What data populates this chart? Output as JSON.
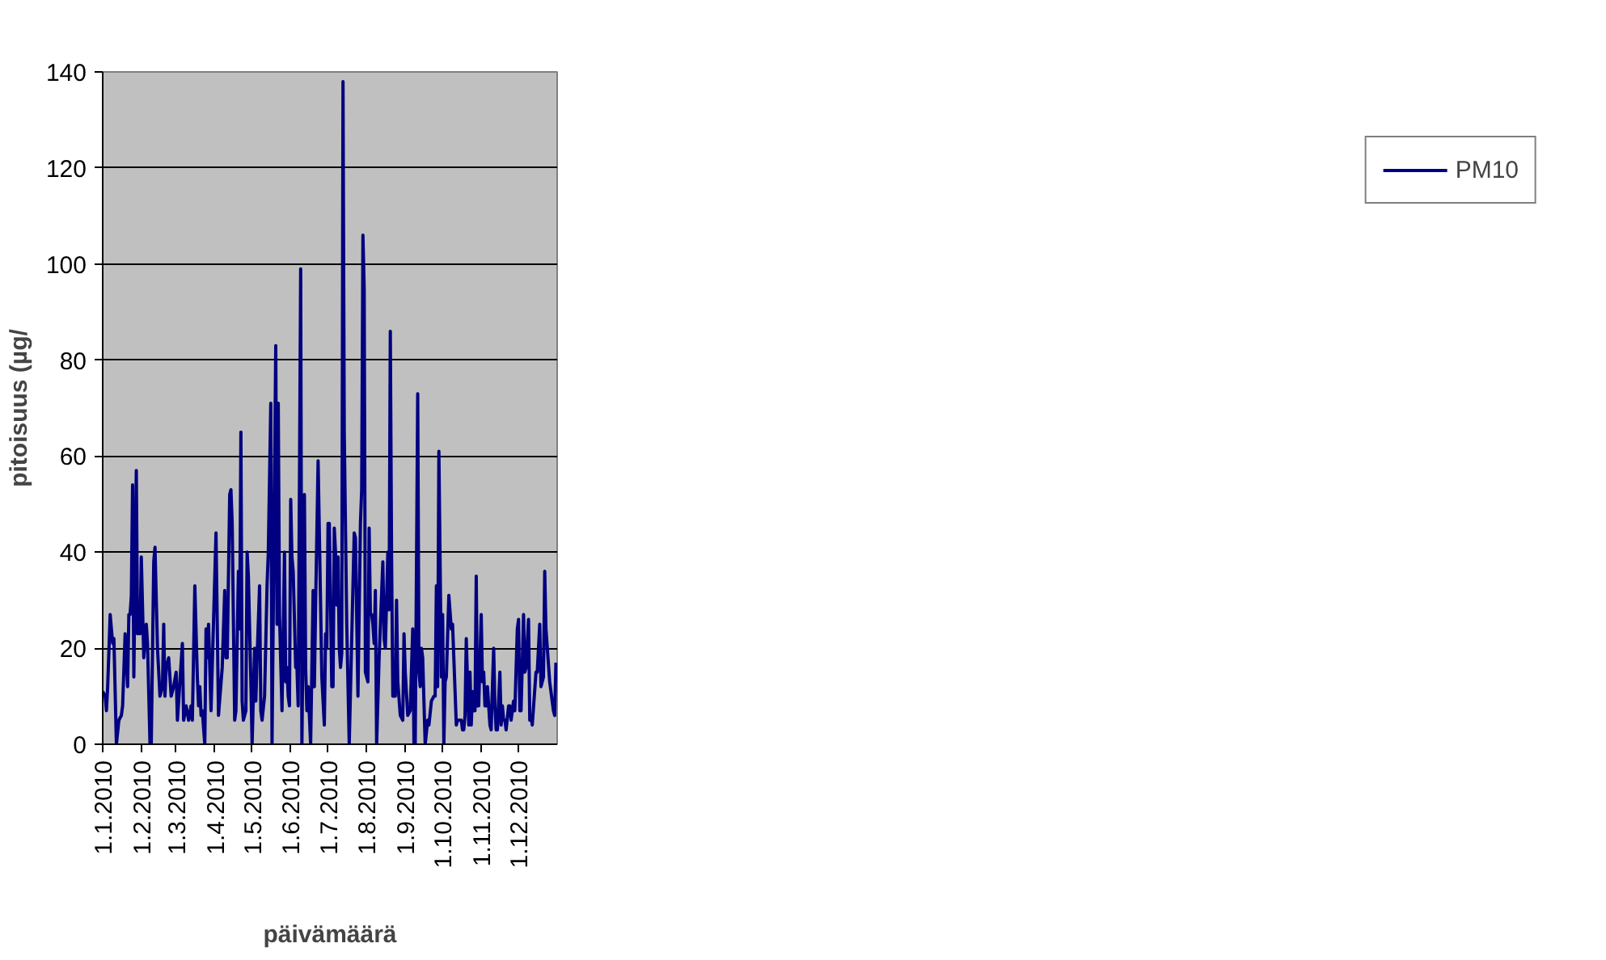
{
  "chart_data": {
    "type": "line",
    "xlabel": "päivämäärä",
    "ylabel": "pitoisuus (µg/",
    "xlim": [
      "2010-01-01",
      "2011-01-01"
    ],
    "xticks": [
      {
        "value": "2010-01-01",
        "label": "1.1.2010"
      },
      {
        "value": "2010-02-01",
        "label": "1.2.2010"
      },
      {
        "value": "2010-03-01",
        "label": "1.3.2010"
      },
      {
        "value": "2010-04-01",
        "label": "1.4.2010"
      },
      {
        "value": "2010-05-01",
        "label": "1.5.2010"
      },
      {
        "value": "2010-06-01",
        "label": "1.6.2010"
      },
      {
        "value": "2010-07-01",
        "label": "1.7.2010"
      },
      {
        "value": "2010-08-01",
        "label": "1.8.2010"
      },
      {
        "value": "2010-09-01",
        "label": "1.9.2010"
      },
      {
        "value": "2010-10-01",
        "label": "1.10.2010"
      },
      {
        "value": "2010-11-01",
        "label": "1.11.2010"
      },
      {
        "value": "2010-12-01",
        "label": "1.12.2010"
      }
    ],
    "ylim": [
      0,
      140
    ],
    "yticks": [
      0,
      20,
      40,
      60,
      80,
      100,
      120,
      140
    ],
    "grid": "y",
    "legend": "right",
    "x": [
      "2010-01-01",
      "2010-01-03",
      "2010-01-04",
      "2010-01-05",
      "2010-01-07",
      "2010-01-09",
      "2010-01-10",
      "2010-01-12",
      "2010-01-14",
      "2010-01-16",
      "2010-01-17",
      "2010-01-19",
      "2010-01-21",
      "2010-01-22",
      "2010-01-23",
      "2010-01-24",
      "2010-01-25",
      "2010-01-26",
      "2010-01-28",
      "2010-01-29",
      "2010-01-30",
      "2010-01-31",
      "2010-02-01",
      "2010-02-03",
      "2010-02-05",
      "2010-02-06",
      "2010-02-08",
      "2010-02-09",
      "2010-02-11",
      "2010-02-12",
      "2010-02-14",
      "2010-02-16",
      "2010-02-18",
      "2010-02-19",
      "2010-02-20",
      "2010-02-21",
      "2010-02-23",
      "2010-02-25",
      "2010-02-27",
      "2010-03-01",
      "2010-03-02",
      "2010-03-06",
      "2010-03-07",
      "2010-03-09",
      "2010-03-11",
      "2010-03-13",
      "2010-03-14",
      "2010-03-16",
      "2010-03-18",
      "2010-03-19",
      "2010-03-20",
      "2010-03-21",
      "2010-03-22",
      "2010-03-24",
      "2010-03-25",
      "2010-03-26",
      "2010-03-27",
      "2010-03-29",
      "2010-04-02",
      "2010-04-04",
      "2010-04-07",
      "2010-04-09",
      "2010-04-10",
      "2010-04-11",
      "2010-04-13",
      "2010-04-14",
      "2010-04-15",
      "2010-04-17",
      "2010-04-18",
      "2010-04-20",
      "2010-04-21",
      "2010-04-22",
      "2010-04-23",
      "2010-04-24",
      "2010-04-26",
      "2010-04-27",
      "2010-04-28",
      "2010-04-30",
      "2010-05-01",
      "2010-05-03",
      "2010-05-04",
      "2010-05-05",
      "2010-05-07",
      "2010-05-08",
      "2010-05-09",
      "2010-05-11",
      "2010-05-13",
      "2010-05-14",
      "2010-05-16",
      "2010-05-17",
      "2010-05-20",
      "2010-05-21",
      "2010-05-22",
      "2010-05-23",
      "2010-05-25",
      "2010-05-27",
      "2010-05-28",
      "2010-05-29",
      "2010-05-30",
      "2010-05-31",
      "2010-06-01",
      "2010-06-02",
      "2010-06-03",
      "2010-06-05",
      "2010-06-06",
      "2010-06-07",
      "2010-06-09",
      "2010-06-10",
      "2010-06-12",
      "2010-06-13",
      "2010-06-14",
      "2010-06-15",
      "2010-06-17",
      "2010-06-19",
      "2010-06-20",
      "2010-06-21",
      "2010-06-23",
      "2010-06-26",
      "2010-06-28",
      "2010-06-29",
      "2010-06-30",
      "2010-07-01",
      "2010-07-02",
      "2010-07-04",
      "2010-07-05",
      "2010-07-06",
      "2010-07-07",
      "2010-07-08",
      "2010-07-09",
      "2010-07-10",
      "2010-07-11",
      "2010-07-12",
      "2010-07-13",
      "2010-07-14",
      "2010-07-16",
      "2010-07-18",
      "2010-07-22",
      "2010-07-23",
      "2010-07-25",
      "2010-07-27",
      "2010-07-28",
      "2010-07-29",
      "2010-07-30",
      "2010-07-31",
      "2010-08-02",
      "2010-08-03",
      "2010-08-04",
      "2010-08-05",
      "2010-08-06",
      "2010-08-07",
      "2010-08-08",
      "2010-08-09",
      "2010-08-11",
      "2010-08-14",
      "2010-08-15",
      "2010-08-16",
      "2010-08-18",
      "2010-08-19",
      "2010-08-20",
      "2010-08-21",
      "2010-08-22",
      "2010-08-24",
      "2010-08-25",
      "2010-08-26",
      "2010-08-28",
      "2010-08-30",
      "2010-08-31",
      "2010-09-01",
      "2010-09-03",
      "2010-09-05",
      "2010-09-07",
      "2010-09-08",
      "2010-09-09",
      "2010-09-11",
      "2010-09-12",
      "2010-09-13",
      "2010-09-14",
      "2010-09-15",
      "2010-09-17",
      "2010-09-19",
      "2010-09-20",
      "2010-09-22",
      "2010-09-24",
      "2010-09-25",
      "2010-09-26",
      "2010-09-27",
      "2010-09-28",
      "2010-09-30",
      "2010-10-01",
      "2010-10-02",
      "2010-10-03",
      "2010-10-04",
      "2010-10-06",
      "2010-10-08",
      "2010-10-09",
      "2010-10-12",
      "2010-10-13",
      "2010-10-16",
      "2010-10-17",
      "2010-10-18",
      "2010-10-19",
      "2010-10-20",
      "2010-10-22",
      "2010-10-23",
      "2010-10-24",
      "2010-10-25",
      "2010-10-26",
      "2010-10-27",
      "2010-10-28",
      "2010-10-29",
      "2010-10-30",
      "2010-11-01",
      "2010-11-02",
      "2010-11-03",
      "2010-11-04",
      "2010-11-05",
      "2010-11-06",
      "2010-11-08",
      "2010-11-09",
      "2010-11-10",
      "2010-11-11",
      "2010-11-12",
      "2010-11-13",
      "2010-11-14",
      "2010-11-16",
      "2010-11-17",
      "2010-11-18",
      "2010-11-19",
      "2010-11-20",
      "2010-11-21",
      "2010-11-23",
      "2010-11-24",
      "2010-11-25",
      "2010-11-27",
      "2010-11-28",
      "2010-11-30",
      "2010-12-01",
      "2010-12-02",
      "2010-12-03",
      "2010-12-05",
      "2010-12-06",
      "2010-12-07",
      "2010-12-09",
      "2010-12-10",
      "2010-12-11",
      "2010-12-12",
      "2010-12-15",
      "2010-12-16",
      "2010-12-18",
      "2010-12-19",
      "2010-12-21",
      "2010-12-22",
      "2010-12-23",
      "2010-12-26",
      "2010-12-29",
      "2010-12-30",
      "2010-12-31"
    ],
    "series": [
      {
        "name": "PM10",
        "color": "#000080",
        "values": [
          11,
          10,
          7,
          12,
          27,
          21,
          22,
          0,
          5,
          6,
          8,
          23,
          12,
          27,
          27,
          31,
          54,
          14,
          57,
          23,
          27,
          23,
          39,
          18,
          25,
          21,
          0,
          0,
          38,
          41,
          20,
          10,
          12,
          25,
          10,
          16,
          18,
          10,
          12,
          15,
          5,
          21,
          5,
          8,
          5,
          8,
          5,
          33,
          14,
          8,
          12,
          6,
          7,
          0,
          24,
          18,
          25,
          7,
          44,
          6,
          16,
          32,
          18,
          18,
          52,
          53,
          46,
          5,
          7,
          36,
          24,
          65,
          9,
          5,
          7,
          40,
          35,
          13,
          0,
          20,
          9,
          18,
          33,
          7,
          5,
          10,
          33,
          40,
          71,
          0,
          83,
          25,
          71,
          27,
          7,
          40,
          13,
          16,
          10,
          8,
          51,
          39,
          36,
          16,
          16,
          8,
          99,
          0,
          52,
          16,
          7,
          12,
          0,
          32,
          12,
          29,
          59,
          14,
          4,
          23,
          20,
          46,
          46,
          12,
          12,
          45,
          40,
          29,
          39,
          20,
          16,
          19,
          138,
          65,
          25,
          0,
          44,
          43,
          10,
          46,
          53,
          106,
          95,
          15,
          13,
          45,
          27,
          27,
          25,
          21,
          32,
          0,
          18,
          38,
          22,
          20,
          40,
          28,
          86,
          39,
          10,
          10,
          30,
          13,
          6,
          5,
          23,
          15,
          6,
          7,
          24,
          0,
          0,
          73,
          15,
          12,
          20,
          18,
          0,
          5,
          4,
          9,
          10,
          10,
          33,
          12,
          61,
          14,
          27,
          0,
          13,
          14,
          31,
          24,
          25,
          4,
          5,
          5,
          3,
          3,
          6,
          22,
          4,
          15,
          4,
          11,
          7,
          7,
          35,
          8,
          8,
          27,
          13,
          15,
          8,
          8,
          12,
          4,
          3,
          12,
          20,
          8,
          3,
          3,
          15,
          4,
          8,
          5,
          5,
          3,
          8,
          8,
          5,
          9,
          7,
          24,
          26,
          7,
          7,
          27,
          15,
          16,
          26,
          5,
          6,
          4,
          15,
          15,
          25,
          12,
          14,
          36,
          24,
          13,
          7,
          6,
          17
        ]
      }
    ]
  }
}
